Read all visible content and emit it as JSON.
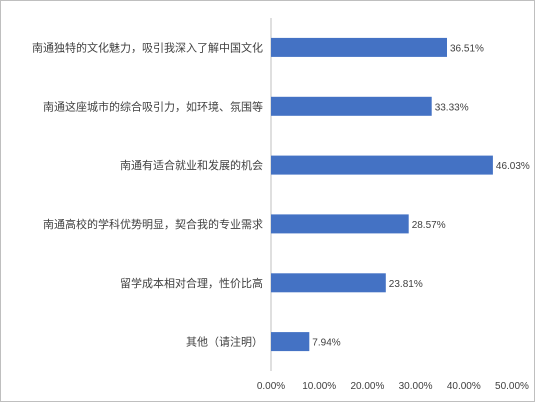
{
  "chart_data": {
    "type": "bar",
    "orientation": "horizontal",
    "categories": [
      "南通独特的文化魅力，吸引我深入了解中国文化",
      "南通这座城市的综合吸引力，如环境、氛围等",
      "南通有适合就业和发展的机会",
      "南通高校的学科优势明显，契合我的专业需求",
      "留学成本相对合理，性价比高",
      "其他（请注明）"
    ],
    "values": [
      36.51,
      33.33,
      46.03,
      28.57,
      23.81,
      7.94
    ],
    "value_labels": [
      "36.51%",
      "33.33%",
      "46.03%",
      "28.57%",
      "23.81%",
      "7.94%"
    ],
    "xlim": [
      0,
      50
    ],
    "x_ticks": [
      "0.00%",
      "10.00%",
      "20.00%",
      "30.00%",
      "40.00%",
      "50.00%"
    ],
    "bar_color": "#4472c4",
    "grid": false,
    "legend": "none",
    "title": "",
    "xlabel": "",
    "ylabel": ""
  }
}
